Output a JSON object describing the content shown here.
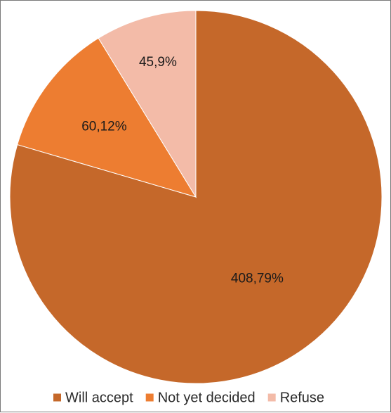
{
  "colors": {
    "will_accept": "#C5682A",
    "not_yet_decided": "#ED7D31",
    "refuse": "#F3BBA8",
    "slice_border": "#ffffff",
    "frame_border": "#7a7a7a"
  },
  "chart_data": {
    "type": "pie",
    "title": "",
    "categories": [
      "Will accept",
      "Not yet decided",
      "Refuse"
    ],
    "values": [
      408,
      60,
      45
    ],
    "percent": [
      79,
      12,
      9
    ],
    "data_labels": [
      "408,79%",
      "60,12%",
      "45,9%"
    ],
    "start_angle_deg": 90,
    "direction": "clockwise",
    "legend": {
      "position": "bottom",
      "entries": [
        "Will accept",
        "Not yet decided",
        "Refuse"
      ]
    }
  }
}
